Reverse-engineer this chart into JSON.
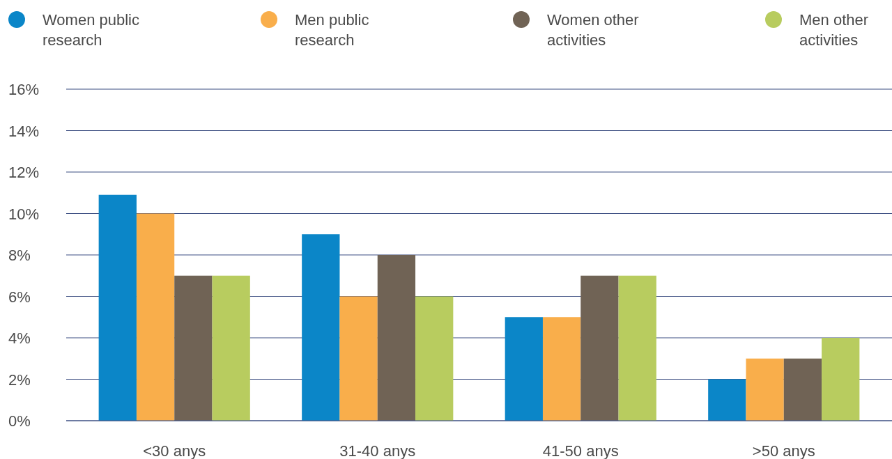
{
  "chart_data": {
    "type": "bar",
    "categories": [
      "<30 anys",
      "31-40 anys",
      "41-50 anys",
      ">50 anys"
    ],
    "series": [
      {
        "name": "Women public research",
        "color": "#0b86c8",
        "values": [
          10.9,
          9,
          5,
          2
        ]
      },
      {
        "name": "Men public research",
        "color": "#f9ae4b",
        "values": [
          10,
          6,
          5,
          3
        ]
      },
      {
        "name": "Women other activities",
        "color": "#706355",
        "values": [
          7,
          8,
          7,
          3
        ]
      },
      {
        "name": "Men other activities",
        "color": "#b8cc5f",
        "values": [
          7,
          6,
          7,
          4
        ]
      }
    ],
    "ylim": [
      0,
      16
    ],
    "yticks": [
      {
        "value": 0,
        "label": "0%"
      },
      {
        "value": 2,
        "label": "2%"
      },
      {
        "value": 4,
        "label": "4%"
      },
      {
        "value": 6,
        "label": "6%"
      },
      {
        "value": 8,
        "label": "8%"
      },
      {
        "value": 10,
        "label": "10%"
      },
      {
        "value": 12,
        "label": "12%"
      },
      {
        "value": 14,
        "label": "14%"
      },
      {
        "value": 16,
        "label": "16%"
      }
    ],
    "grid": "y",
    "legend": "top"
  }
}
